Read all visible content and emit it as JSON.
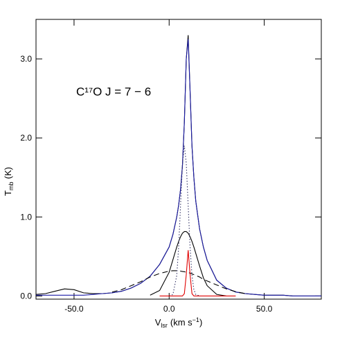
{
  "chart_data": {
    "type": "line",
    "annotation": "C¹⁷O J = 7 − 6",
    "xlabel": {
      "main": "V",
      "sub": "lsr",
      "unit": "(km s",
      "sup": "−1",
      "close": ")"
    },
    "ylabel": {
      "main": "T",
      "sub": "mb",
      "unit": "(K)"
    },
    "xlim": [
      -70,
      80
    ],
    "ylim": [
      -0.04,
      3.5
    ],
    "xticks": [
      {
        "value": -50,
        "label": "-50.0"
      },
      {
        "value": 0,
        "label": "0.0"
      },
      {
        "value": 50,
        "label": "50.0"
      }
    ],
    "yticks": [
      {
        "value": 0,
        "label": "0.0"
      },
      {
        "value": 1,
        "label": "1.0"
      },
      {
        "value": 2,
        "label": "2.0"
      },
      {
        "value": 3,
        "label": "3.0"
      }
    ],
    "x": [
      -70,
      -65,
      -60,
      -55,
      -50,
      -45,
      -40,
      -35,
      -30,
      -25,
      -20,
      -15,
      -10,
      -5,
      0,
      2,
      4,
      5,
      6,
      7,
      8,
      9,
      10,
      11,
      12,
      13,
      14,
      16,
      18,
      20,
      25,
      30,
      35,
      40,
      45,
      50,
      55,
      60,
      65,
      70,
      75,
      80
    ],
    "series": [
      {
        "color": "#000000",
        "dash": "solid",
        "values": [
          0.02,
          0.03,
          0.06,
          0.09,
          0.08,
          0.04,
          0.03,
          0.03,
          0.04,
          0.06,
          0.1,
          0.16,
          0.25,
          0.4,
          0.62,
          0.78,
          1.0,
          1.15,
          1.35,
          1.65,
          2.2,
          3.0,
          3.3,
          2.6,
          1.9,
          1.5,
          1.2,
          0.85,
          0.62,
          0.45,
          0.2,
          0.1,
          0.05,
          0.03,
          0.02,
          0.01,
          0.01,
          0.01,
          0.0,
          0.0,
          0.0,
          0.0
        ]
      },
      {
        "color": "#1a1aa6",
        "dash": "solid",
        "values": [
          0.01,
          0.01,
          0.01,
          0.01,
          0.01,
          0.01,
          0.02,
          0.03,
          0.04,
          0.06,
          0.1,
          0.16,
          0.25,
          0.4,
          0.62,
          0.78,
          1.0,
          1.15,
          1.35,
          1.65,
          2.2,
          3.0,
          3.25,
          2.6,
          1.9,
          1.5,
          1.2,
          0.85,
          0.62,
          0.45,
          0.2,
          0.1,
          0.05,
          0.03,
          0.02,
          0.01,
          0.01,
          0.01,
          0.0,
          0.0,
          0.0,
          0.0
        ]
      },
      {
        "color": "#000000",
        "dash": "dashed",
        "values": [
          null,
          null,
          null,
          null,
          null,
          null,
          null,
          null,
          0.05,
          0.08,
          0.13,
          0.18,
          0.24,
          0.285,
          0.315,
          0.32,
          0.32,
          0.32,
          0.315,
          0.31,
          0.307,
          0.3,
          0.295,
          0.29,
          0.28,
          0.27,
          0.26,
          0.24,
          0.21,
          0.19,
          0.14,
          0.09,
          0.055,
          0.03,
          null,
          null,
          null,
          null,
          null,
          null,
          null,
          null
        ]
      },
      {
        "color": "#000000",
        "dash": "solid",
        "values": [
          null,
          null,
          null,
          null,
          null,
          null,
          null,
          null,
          null,
          null,
          null,
          null,
          0.01,
          0.07,
          0.3,
          0.46,
          0.62,
          0.69,
          0.75,
          0.795,
          0.815,
          0.815,
          0.795,
          0.75,
          0.69,
          0.62,
          0.54,
          0.38,
          0.23,
          0.13,
          0.02,
          0.0,
          null,
          null,
          null,
          null,
          null,
          null,
          null,
          null,
          null,
          null
        ]
      },
      {
        "color": "#333366",
        "dash": "dotted",
        "values": [
          null,
          null,
          null,
          null,
          null,
          null,
          null,
          null,
          null,
          null,
          null,
          null,
          null,
          null,
          0.0,
          0.02,
          0.26,
          0.62,
          1.15,
          1.68,
          1.9,
          1.68,
          1.15,
          0.62,
          0.26,
          0.08,
          0.02,
          0.0,
          null,
          null,
          null,
          null,
          null,
          null,
          null,
          null,
          null,
          null,
          null,
          null,
          null,
          null
        ]
      },
      {
        "color": "#e00000",
        "dash": "solid",
        "values": [
          null,
          null,
          null,
          null,
          null,
          null,
          null,
          null,
          null,
          null,
          null,
          null,
          null,
          0.0,
          0.0,
          0.0,
          0.0,
          0.0,
          0.0,
          0.0,
          0.03,
          0.27,
          0.58,
          0.27,
          0.03,
          0.0,
          0.0,
          0.0,
          0.0,
          0.0,
          0.0,
          0.0,
          0.0,
          null,
          null,
          null,
          null,
          null,
          null,
          null,
          null,
          null
        ]
      }
    ]
  }
}
